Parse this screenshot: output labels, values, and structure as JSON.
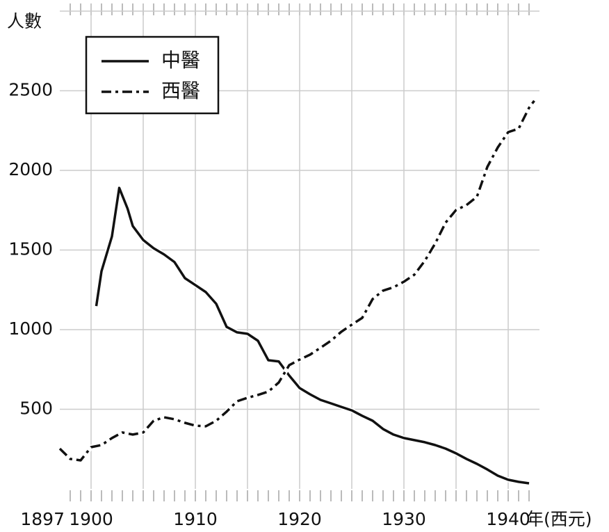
{
  "chart_data": {
    "type": "line",
    "ylabel": "人數",
    "xlabel": "年(西元)",
    "xlim": [
      1897,
      1943
    ],
    "ylim": [
      0,
      3000
    ],
    "xticks": [
      1897,
      1900,
      1910,
      1920,
      1930,
      1940
    ],
    "xgrid": [
      1900,
      1905,
      1910,
      1915,
      1920,
      1925,
      1930,
      1935,
      1940
    ],
    "xminor": 1,
    "yticks": [
      500,
      1000,
      1500,
      2000,
      2500
    ],
    "grid": true,
    "legend": "upper left",
    "series": [
      {
        "name": "中醫",
        "color": "#111111",
        "dash": "solid",
        "x": [
          1900.5,
          1901,
          1902,
          1902.7,
          1903.5,
          1904,
          1905,
          1906,
          1907,
          1908,
          1909,
          1910,
          1911,
          1912,
          1913,
          1914,
          1915,
          1916,
          1917,
          1918,
          1919,
          1920,
          1921,
          1922,
          1923,
          1924,
          1925,
          1926,
          1927,
          1928,
          1929,
          1930,
          1931,
          1932,
          1933,
          1934,
          1935,
          1936,
          1937,
          1938,
          1939,
          1940,
          1941,
          1942
        ],
        "values": [
          1148,
          1367,
          1585,
          1890,
          1760,
          1650,
          1563,
          1511,
          1472,
          1424,
          1323,
          1280,
          1236,
          1162,
          1017,
          983,
          974,
          930,
          808,
          800,
          712,
          633,
          594,
          559,
          537,
          515,
          493,
          459,
          428,
          376,
          341,
          319,
          306,
          293,
          275,
          253,
          223,
          188,
          157,
          122,
          83,
          57,
          44,
          35
        ]
      },
      {
        "name": "西醫",
        "color": "#111111",
        "dash": "dashdot",
        "x": [
          1897,
          1898,
          1899,
          1900,
          1901,
          1902,
          1903,
          1904,
          1905,
          1906,
          1907,
          1908,
          1909,
          1910,
          1911,
          1912,
          1913,
          1914,
          1915,
          1916,
          1917,
          1918,
          1919,
          1920,
          1921,
          1922,
          1923,
          1924,
          1925,
          1926,
          1927,
          1928,
          1929,
          1930,
          1931,
          1932,
          1933,
          1934,
          1935,
          1936,
          1937,
          1938,
          1939,
          1940,
          1941,
          1942,
          1942.5
        ],
        "values": [
          253,
          188,
          179,
          262,
          275,
          319,
          354,
          341,
          354,
          428,
          450,
          437,
          415,
          397,
          393,
          428,
          485,
          550,
          572,
          590,
          611,
          668,
          777,
          812,
          843,
          886,
          930,
          987,
          1031,
          1074,
          1192,
          1245,
          1266,
          1301,
          1345,
          1432,
          1541,
          1672,
          1751,
          1782,
          1834,
          2022,
          2144,
          2240,
          2262,
          2393,
          2437
        ]
      }
    ]
  }
}
